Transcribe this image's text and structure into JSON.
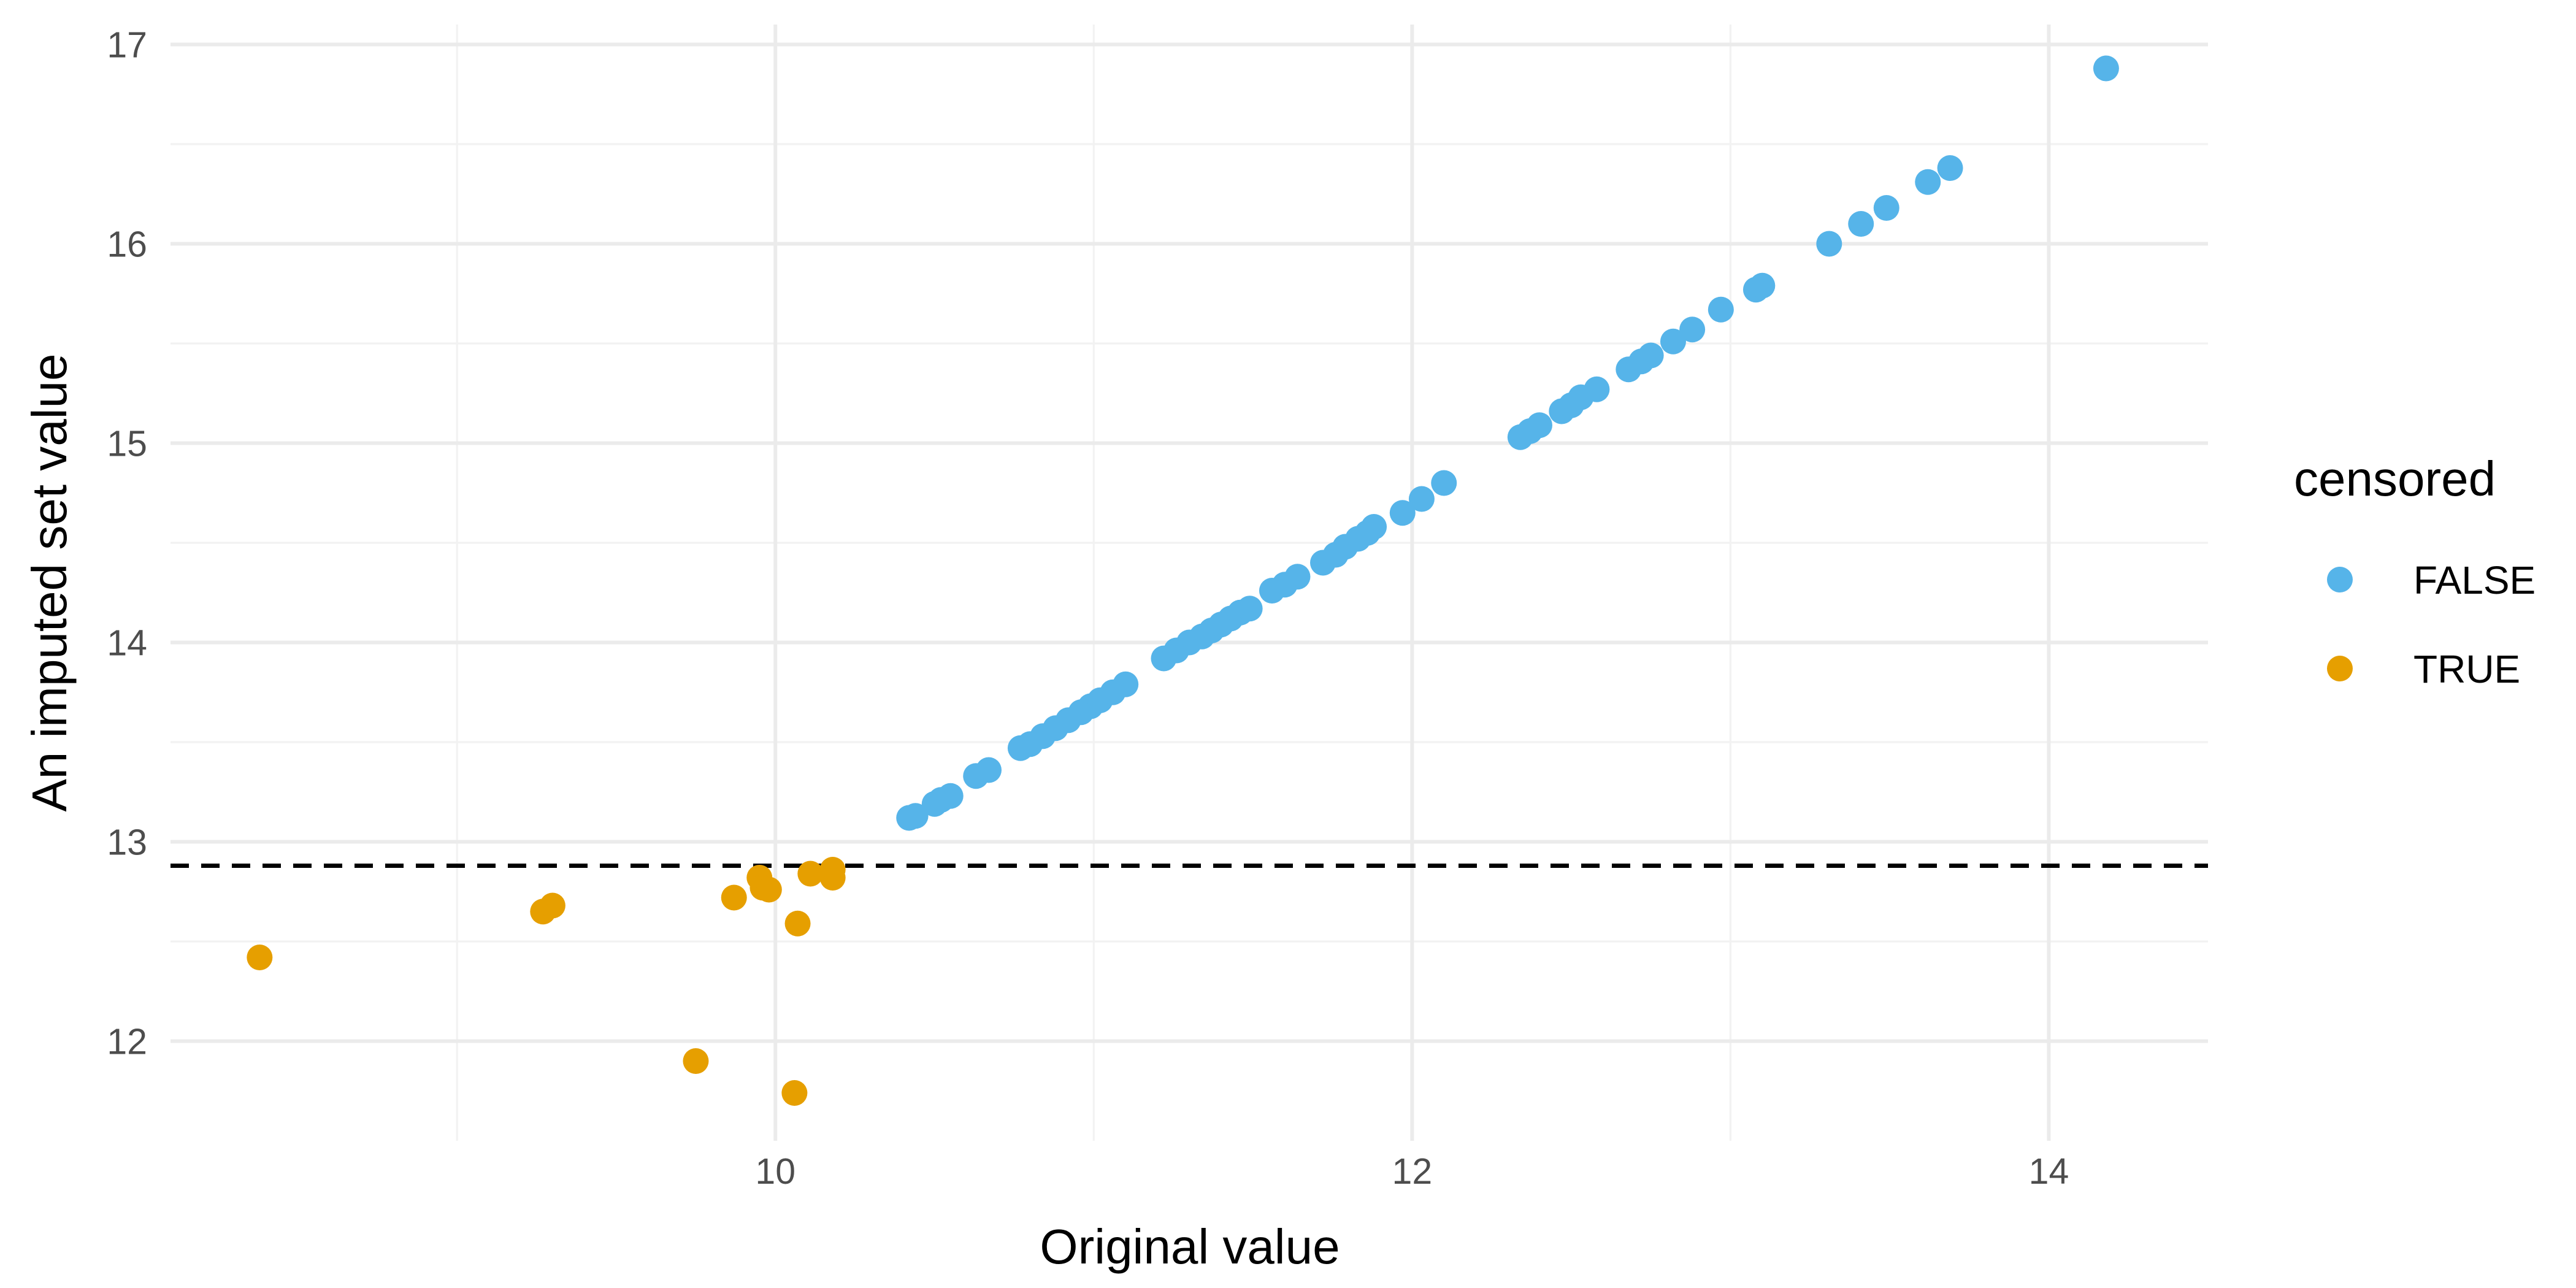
{
  "chart_data": {
    "type": "scatter",
    "title": "",
    "xlabel": "Original value",
    "ylabel": "An imputed set value",
    "xlim": [
      8.1,
      14.5
    ],
    "ylim": [
      11.5,
      17.1
    ],
    "x_ticks": [
      10,
      12,
      14
    ],
    "y_ticks": [
      12,
      13,
      14,
      15,
      16,
      17
    ],
    "x_minor_ticks": [
      9,
      11,
      13
    ],
    "y_minor_ticks": [
      12.5,
      13.5,
      14.5,
      15.5,
      16.5
    ],
    "grid": true,
    "hline": {
      "y": 12.88,
      "style": "dashed",
      "color": "#000000"
    },
    "legend": {
      "title": "censored",
      "position": "right"
    },
    "series": [
      {
        "name": "FALSE",
        "color": "#56B4E9",
        "points": [
          [
            10.42,
            13.12
          ],
          [
            10.44,
            13.13
          ],
          [
            10.5,
            13.19
          ],
          [
            10.52,
            13.21
          ],
          [
            10.55,
            13.23
          ],
          [
            10.63,
            13.33
          ],
          [
            10.67,
            13.36
          ],
          [
            10.77,
            13.47
          ],
          [
            10.8,
            13.49
          ],
          [
            10.84,
            13.53
          ],
          [
            10.88,
            13.57
          ],
          [
            10.92,
            13.61
          ],
          [
            10.96,
            13.65
          ],
          [
            10.99,
            13.68
          ],
          [
            11.02,
            13.71
          ],
          [
            11.06,
            13.75
          ],
          [
            11.1,
            13.79
          ],
          [
            11.22,
            13.92
          ],
          [
            11.26,
            13.96
          ],
          [
            11.3,
            14.0
          ],
          [
            11.34,
            14.03
          ],
          [
            11.37,
            14.06
          ],
          [
            11.4,
            14.09
          ],
          [
            11.43,
            14.12
          ],
          [
            11.46,
            14.15
          ],
          [
            11.49,
            14.17
          ],
          [
            11.56,
            14.26
          ],
          [
            11.6,
            14.29
          ],
          [
            11.64,
            14.33
          ],
          [
            11.72,
            14.4
          ],
          [
            11.76,
            14.44
          ],
          [
            11.79,
            14.48
          ],
          [
            11.83,
            14.52
          ],
          [
            11.86,
            14.55
          ],
          [
            11.88,
            14.58
          ],
          [
            11.97,
            14.65
          ],
          [
            12.03,
            14.72
          ],
          [
            12.1,
            14.8
          ],
          [
            12.34,
            15.03
          ],
          [
            12.37,
            15.06
          ],
          [
            12.4,
            15.09
          ],
          [
            12.47,
            15.16
          ],
          [
            12.5,
            15.19
          ],
          [
            12.53,
            15.23
          ],
          [
            12.58,
            15.27
          ],
          [
            12.68,
            15.37
          ],
          [
            12.72,
            15.41
          ],
          [
            12.75,
            15.44
          ],
          [
            12.82,
            15.51
          ],
          [
            12.88,
            15.57
          ],
          [
            12.97,
            15.67
          ],
          [
            13.08,
            15.77
          ],
          [
            13.1,
            15.79
          ],
          [
            13.31,
            16.0
          ],
          [
            13.41,
            16.1
          ],
          [
            13.49,
            16.18
          ],
          [
            13.62,
            16.31
          ],
          [
            13.69,
            16.38
          ],
          [
            14.18,
            16.88
          ]
        ]
      },
      {
        "name": "TRUE",
        "color": "#E69F00",
        "points": [
          [
            8.38,
            12.42
          ],
          [
            9.27,
            12.65
          ],
          [
            9.3,
            12.68
          ],
          [
            9.75,
            11.9
          ],
          [
            9.87,
            12.72
          ],
          [
            9.95,
            12.82
          ],
          [
            9.96,
            12.77
          ],
          [
            9.98,
            12.76
          ],
          [
            10.06,
            11.74
          ],
          [
            10.07,
            12.59
          ],
          [
            10.11,
            12.84
          ],
          [
            10.18,
            12.86
          ],
          [
            10.18,
            12.82
          ]
        ]
      }
    ]
  }
}
